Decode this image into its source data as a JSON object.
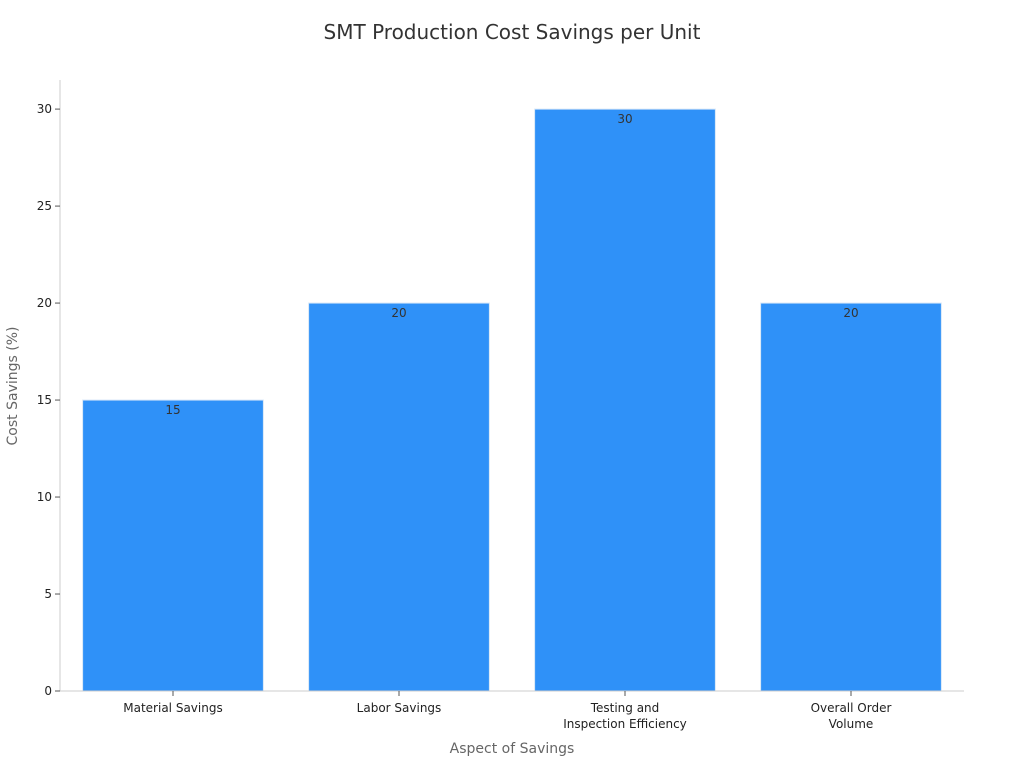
{
  "chart_data": {
    "type": "bar",
    "title": "SMT Production Cost Savings per Unit",
    "xlabel": "Aspect of Savings",
    "ylabel": "Cost Savings (%)",
    "categories": [
      [
        "Material Savings"
      ],
      [
        "Labor Savings"
      ],
      [
        "Testing and",
        "Inspection Efficiency"
      ],
      [
        "Overall Order",
        "Volume"
      ]
    ],
    "values": [
      15,
      20,
      30,
      20
    ],
    "data_labels": [
      "15",
      "20",
      "30",
      "20"
    ],
    "ylim": [
      0,
      31.5
    ],
    "yticks": [
      0,
      5,
      10,
      15,
      20,
      25,
      30
    ],
    "grid": false,
    "legend": "none",
    "bar_color": "#2f91f8",
    "bar_edge_color": "#d9e8f8"
  }
}
